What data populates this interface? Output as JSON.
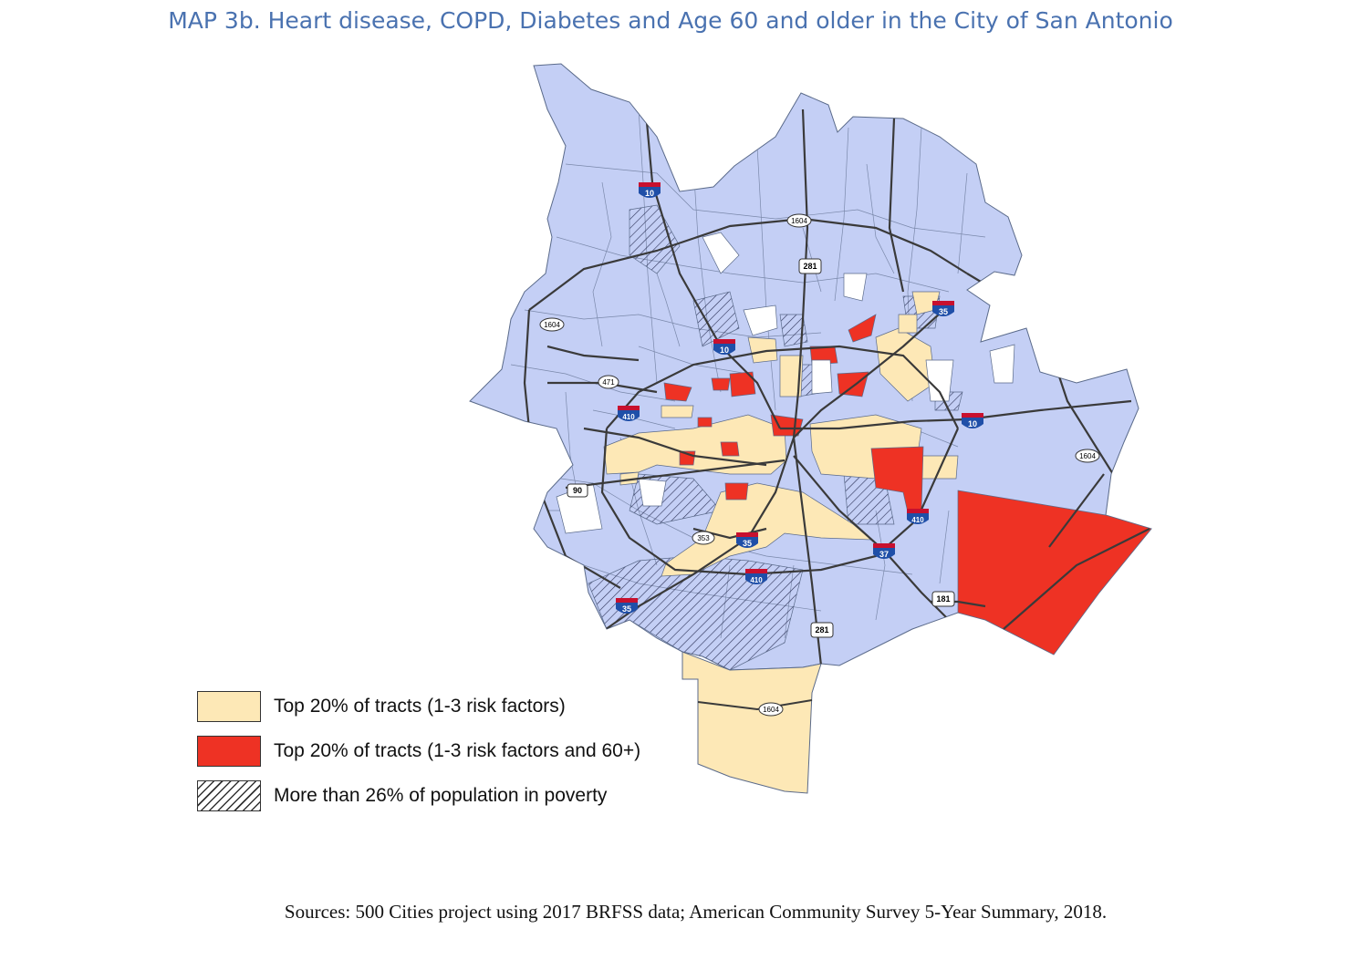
{
  "title": "MAP 3b. Heart disease, COPD, Diabetes and Age 60 and older in the City of San Antonio",
  "legend": [
    {
      "label": "Top 20% of tracts (1-3 risk factors)",
      "pattern": "tan-fill"
    },
    {
      "label": "Top 20% of tracts (1-3 risk factors and 60+)",
      "pattern": "red-fill"
    },
    {
      "label": "More than 26% of population in poverty",
      "pattern": "hatch"
    }
  ],
  "colors": {
    "base": "#c4cff5",
    "tan": "#fde8b6",
    "red": "#ee3224",
    "road": "#3a3a3a",
    "tract_line": "#5a6a8a",
    "interstate": "#c8102e",
    "interstate_blue": "#1f4fa8"
  },
  "highways": {
    "interstates": [
      "10",
      "10",
      "10",
      "410",
      "410",
      "410",
      "35",
      "35",
      "35",
      "37"
    ],
    "others": [
      "1604",
      "1604",
      "1604",
      "1604",
      "281",
      "281",
      "471",
      "90",
      "353",
      "181"
    ]
  },
  "sources": "Sources: 500 Cities project using 2017 BRFSS data; American Community Survey 5-Year Summary, 2018."
}
